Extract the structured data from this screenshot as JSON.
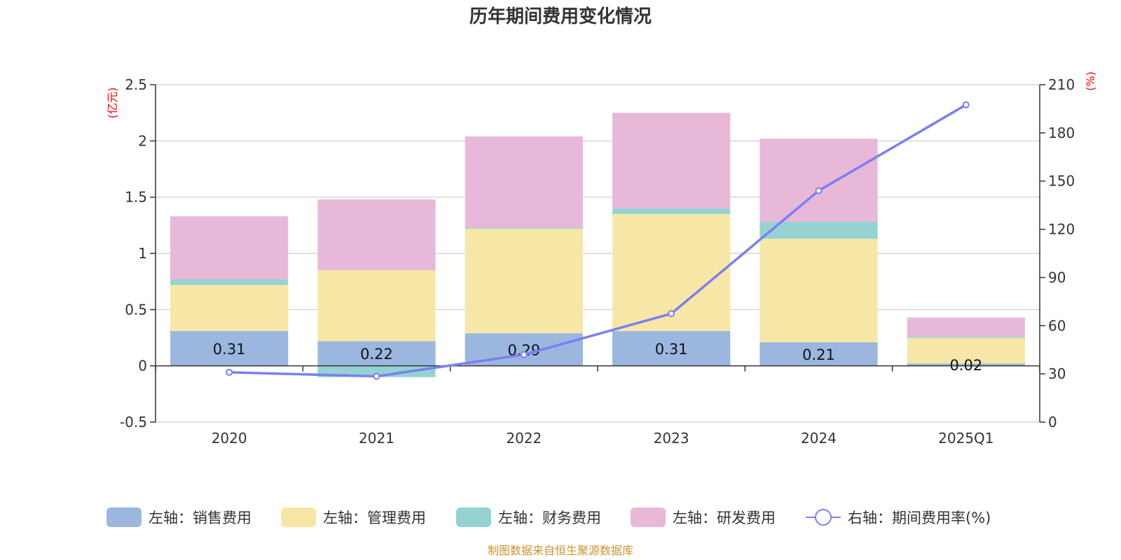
{
  "chart_data": {
    "type": "bar",
    "stacked": true,
    "title": "历年期间费用变化情况",
    "categories": [
      "2020",
      "2021",
      "2022",
      "2023",
      "2024",
      "2025Q1"
    ],
    "left_axis": {
      "unit": "(亿元)",
      "ylim": [
        -0.5,
        2.5
      ],
      "ticks": [
        "-0.5",
        "0",
        "0.5",
        "1",
        "1.5",
        "2",
        "2.5"
      ],
      "tick_values": [
        -0.5,
        0,
        0.5,
        1,
        1.5,
        2,
        2.5
      ]
    },
    "right_axis": {
      "unit": "(%)",
      "ylim": [
        0,
        210
      ],
      "ticks": [
        "0",
        "30",
        "60",
        "90",
        "120",
        "150",
        "180",
        "210"
      ],
      "tick_values": [
        0,
        30,
        60,
        90,
        120,
        150,
        180,
        210
      ]
    },
    "grid": true,
    "series": [
      {
        "name": "左轴：销售费用",
        "axis": "left",
        "type": "bar",
        "color": "#9bb7e0",
        "values": [
          0.31,
          0.22,
          0.29,
          0.31,
          0.21,
          0.02
        ],
        "labels": [
          "0.31",
          "0.22",
          "0.29",
          "0.31",
          "0.21",
          "0.02"
        ]
      },
      {
        "name": "左轴：管理费用",
        "axis": "left",
        "type": "bar",
        "color": "#f7e7a6",
        "values": [
          0.41,
          0.63,
          0.93,
          1.04,
          0.92,
          0.23
        ]
      },
      {
        "name": "左轴：财务费用",
        "axis": "left",
        "type": "bar",
        "color": "#95d3d3",
        "values": [
          0.05,
          -0.1,
          0.01,
          0.05,
          0.15,
          0.01
        ]
      },
      {
        "name": "左轴：研发费用",
        "axis": "left",
        "type": "bar",
        "color": "#e8b8d9",
        "values": [
          0.56,
          0.63,
          0.81,
          0.85,
          0.74,
          0.17
        ]
      },
      {
        "name": "右轴：期间费用率(%)",
        "axis": "right",
        "type": "line",
        "color": "#7b7ff0",
        "values": [
          31,
          28.5,
          42,
          67.5,
          144,
          197.5
        ]
      }
    ],
    "legend_position": "bottom",
    "source": "制图数据来自恒生聚源数据库"
  }
}
